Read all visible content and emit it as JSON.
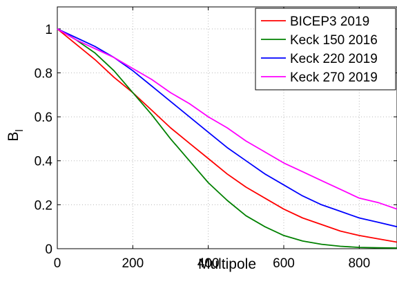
{
  "chart_data": {
    "type": "line",
    "title": "",
    "xlabel": "Multipole",
    "ylabel_main": "B",
    "ylabel_sub": "l",
    "xlim": [
      0,
      900
    ],
    "ylim": [
      0,
      1.1
    ],
    "x_ticks": [
      0,
      200,
      400,
      600,
      800
    ],
    "y_ticks": [
      0,
      0.2,
      0.4,
      0.6,
      0.8,
      1
    ],
    "x_tick_labels": [
      "0",
      "200",
      "400",
      "600",
      "800"
    ],
    "y_tick_labels": [
      "0",
      "0.2",
      "0.4",
      "0.6",
      "0.8",
      "1"
    ],
    "grid": true,
    "legend_position": "top-right",
    "series": [
      {
        "name": "BICEP3 2019",
        "color": "#ff0000",
        "x": [
          0,
          50,
          100,
          150,
          200,
          250,
          300,
          350,
          400,
          450,
          500,
          550,
          600,
          650,
          700,
          750,
          800,
          850,
          900
        ],
        "y": [
          1.0,
          0.93,
          0.86,
          0.78,
          0.71,
          0.63,
          0.55,
          0.48,
          0.41,
          0.34,
          0.28,
          0.23,
          0.18,
          0.14,
          0.11,
          0.08,
          0.06,
          0.045,
          0.03
        ]
      },
      {
        "name": "Keck 150 2016",
        "color": "#008000",
        "x": [
          0,
          50,
          100,
          150,
          200,
          250,
          300,
          350,
          400,
          450,
          500,
          550,
          600,
          650,
          700,
          750,
          800,
          850,
          900
        ],
        "y": [
          1.0,
          0.95,
          0.89,
          0.81,
          0.71,
          0.61,
          0.5,
          0.4,
          0.3,
          0.22,
          0.15,
          0.1,
          0.06,
          0.035,
          0.02,
          0.011,
          0.006,
          0.004,
          0.003
        ]
      },
      {
        "name": "Keck 220 2019",
        "color": "#0000ff",
        "x": [
          0,
          50,
          100,
          150,
          200,
          250,
          300,
          350,
          400,
          450,
          500,
          550,
          600,
          650,
          700,
          750,
          800,
          850,
          900
        ],
        "y": [
          1.0,
          0.96,
          0.92,
          0.87,
          0.81,
          0.74,
          0.67,
          0.6,
          0.53,
          0.46,
          0.4,
          0.34,
          0.29,
          0.24,
          0.2,
          0.17,
          0.14,
          0.12,
          0.1
        ]
      },
      {
        "name": "Keck 270 2019",
        "color": "#ff00ff",
        "x": [
          0,
          50,
          100,
          150,
          200,
          250,
          300,
          350,
          400,
          450,
          500,
          550,
          600,
          650,
          700,
          750,
          800,
          850,
          900
        ],
        "y": [
          1.0,
          0.95,
          0.91,
          0.87,
          0.82,
          0.77,
          0.71,
          0.66,
          0.6,
          0.55,
          0.49,
          0.44,
          0.39,
          0.35,
          0.31,
          0.27,
          0.23,
          0.21,
          0.18
        ]
      }
    ]
  }
}
